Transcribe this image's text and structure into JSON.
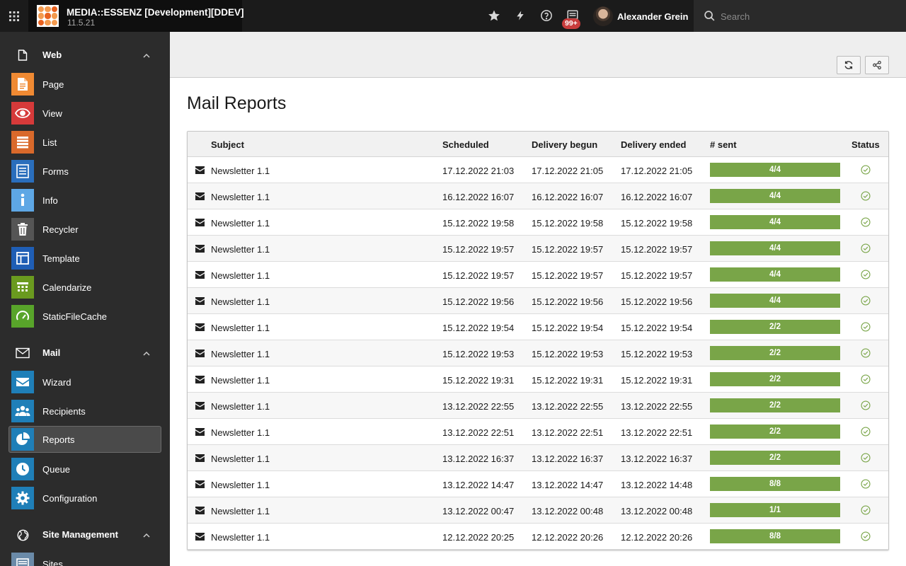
{
  "topbar": {
    "site_title": "MEDIA::ESSENZ [Development][DDEV]",
    "version": "11.5.21",
    "notification_count": "99+",
    "username": "Alexander Grein",
    "search_placeholder": "Search"
  },
  "sidebar": {
    "groups": [
      {
        "label": "Web",
        "icon": "page-outline-icon",
        "items": [
          {
            "label": "Page",
            "icon": "page-icon",
            "color": "#f08a33"
          },
          {
            "label": "View",
            "icon": "eye-icon",
            "color": "#d63a3a"
          },
          {
            "label": "List",
            "icon": "list-icon",
            "color": "#d9692b"
          },
          {
            "label": "Forms",
            "icon": "form-icon",
            "color": "#2a6ebc"
          },
          {
            "label": "Info",
            "icon": "info-icon",
            "color": "#5ea7e5"
          },
          {
            "label": "Recycler",
            "icon": "trash-icon",
            "color": "#555555"
          },
          {
            "label": "Template",
            "icon": "template-icon",
            "color": "#1f5eb5"
          },
          {
            "label": "Calendarize",
            "icon": "calendar-icon",
            "color": "#6a9a1f"
          },
          {
            "label": "StaticFileCache",
            "icon": "gauge-icon",
            "color": "#58a42a"
          }
        ]
      },
      {
        "label": "Mail",
        "icon": "envelope-outline-icon",
        "items": [
          {
            "label": "Wizard",
            "icon": "envelope-icon",
            "color": "#1f7fb8"
          },
          {
            "label": "Recipients",
            "icon": "users-icon",
            "color": "#1f7fb8"
          },
          {
            "label": "Reports",
            "icon": "pie-chart-icon",
            "color": "#1f7fb8",
            "active": true
          },
          {
            "label": "Queue",
            "icon": "clock-icon",
            "color": "#1f7fb8"
          },
          {
            "label": "Configuration",
            "icon": "cog-icon",
            "color": "#1f7fb8"
          }
        ]
      },
      {
        "label": "Site Management",
        "icon": "globe-icon",
        "items": [
          {
            "label": "Sites",
            "icon": "sites-icon",
            "color": "#6a8aa8"
          }
        ]
      }
    ]
  },
  "page_title": "Mail Reports",
  "table": {
    "headers": {
      "subject": "Subject",
      "scheduled": "Scheduled",
      "delivery_begun": "Delivery begun",
      "delivery_ended": "Delivery ended",
      "sent": "# sent",
      "status": "Status"
    },
    "rows": [
      {
        "subject": "Newsletter 1.1",
        "scheduled": "17.12.2022 21:03",
        "begun": "17.12.2022 21:05",
        "ended": "17.12.2022 21:05",
        "sent": "4/4"
      },
      {
        "subject": "Newsletter 1.1",
        "scheduled": "16.12.2022 16:07",
        "begun": "16.12.2022 16:07",
        "ended": "16.12.2022 16:07",
        "sent": "4/4"
      },
      {
        "subject": "Newsletter 1.1",
        "scheduled": "15.12.2022 19:58",
        "begun": "15.12.2022 19:58",
        "ended": "15.12.2022 19:58",
        "sent": "4/4"
      },
      {
        "subject": "Newsletter 1.1",
        "scheduled": "15.12.2022 19:57",
        "begun": "15.12.2022 19:57",
        "ended": "15.12.2022 19:57",
        "sent": "4/4"
      },
      {
        "subject": "Newsletter 1.1",
        "scheduled": "15.12.2022 19:57",
        "begun": "15.12.2022 19:57",
        "ended": "15.12.2022 19:57",
        "sent": "4/4"
      },
      {
        "subject": "Newsletter 1.1",
        "scheduled": "15.12.2022 19:56",
        "begun": "15.12.2022 19:56",
        "ended": "15.12.2022 19:56",
        "sent": "4/4"
      },
      {
        "subject": "Newsletter 1.1",
        "scheduled": "15.12.2022 19:54",
        "begun": "15.12.2022 19:54",
        "ended": "15.12.2022 19:54",
        "sent": "2/2"
      },
      {
        "subject": "Newsletter 1.1",
        "scheduled": "15.12.2022 19:53",
        "begun": "15.12.2022 19:53",
        "ended": "15.12.2022 19:53",
        "sent": "2/2"
      },
      {
        "subject": "Newsletter 1.1",
        "scheduled": "15.12.2022 19:31",
        "begun": "15.12.2022 19:31",
        "ended": "15.12.2022 19:31",
        "sent": "2/2"
      },
      {
        "subject": "Newsletter 1.1",
        "scheduled": "13.12.2022 22:55",
        "begun": "13.12.2022 22:55",
        "ended": "13.12.2022 22:55",
        "sent": "2/2"
      },
      {
        "subject": "Newsletter 1.1",
        "scheduled": "13.12.2022 22:51",
        "begun": "13.12.2022 22:51",
        "ended": "13.12.2022 22:51",
        "sent": "2/2"
      },
      {
        "subject": "Newsletter 1.1",
        "scheduled": "13.12.2022 16:37",
        "begun": "13.12.2022 16:37",
        "ended": "13.12.2022 16:37",
        "sent": "2/2"
      },
      {
        "subject": "Newsletter 1.1",
        "scheduled": "13.12.2022 14:47",
        "begun": "13.12.2022 14:47",
        "ended": "13.12.2022 14:48",
        "sent": "8/8"
      },
      {
        "subject": "Newsletter 1.1",
        "scheduled": "13.12.2022 00:47",
        "begun": "13.12.2022 00:48",
        "ended": "13.12.2022 00:48",
        "sent": "1/1"
      },
      {
        "subject": "Newsletter 1.1",
        "scheduled": "12.12.2022 20:25",
        "begun": "12.12.2022 20:26",
        "ended": "12.12.2022 20:26",
        "sent": "8/8"
      }
    ]
  },
  "colors": {
    "topbar": "#1b1b1b",
    "sidebar": "#2c2c2c",
    "progress": "#79a548",
    "status_ok": "#79a548",
    "badge": "#c83c3c"
  }
}
